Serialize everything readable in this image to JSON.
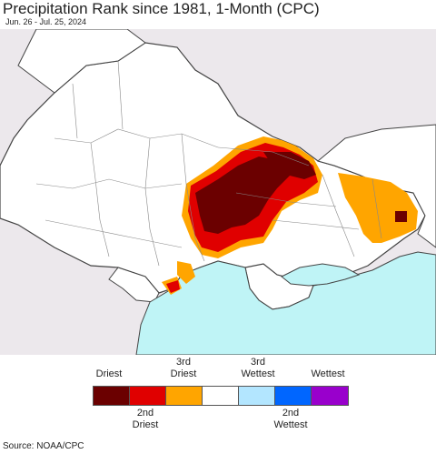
{
  "title": "Precipitation Rank since 1981, 1-Month (CPC)",
  "subtitle": "Jun. 26 - Jul. 25, 2024",
  "source": "Source: NOAA/CPC",
  "colors": {
    "driest": "#6b0000",
    "second_driest": "#e00000",
    "third_driest": "#ffa500",
    "normal": "#ffffff",
    "third_wettest": "#b3e6ff",
    "second_wettest": "#0066ff",
    "wettest": "#9900cc",
    "sea": "#bff4f6",
    "outside": "#ece8ec",
    "border": "#444444"
  },
  "legend": {
    "top_labels": [
      {
        "line1": "Driest",
        "line2": ""
      },
      {
        "line1": "3rd",
        "line2": "Driest"
      },
      {
        "line1": "3rd",
        "line2": "Wettest"
      },
      {
        "line1": "Wettest",
        "line2": ""
      }
    ],
    "bottom_labels": [
      {
        "line1": "2nd",
        "line2": "Driest"
      },
      {
        "line1": "2nd",
        "line2": "Wettest"
      }
    ]
  }
}
